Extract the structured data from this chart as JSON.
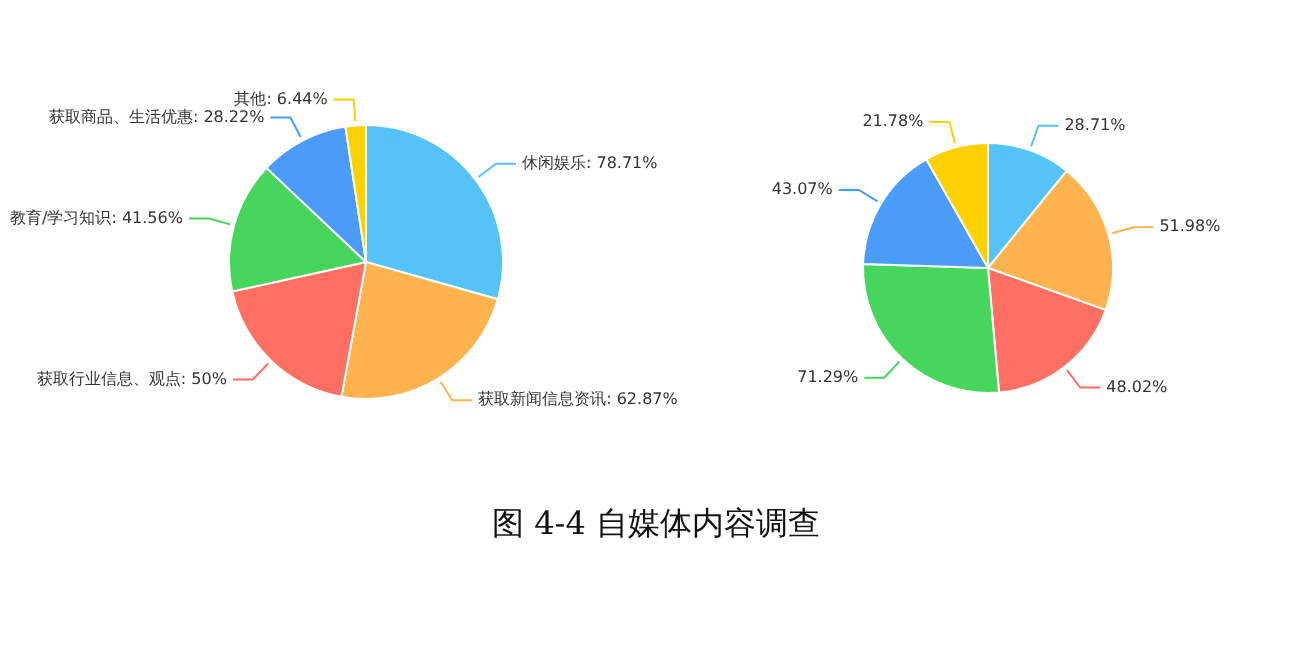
{
  "chart_data": [
    {
      "type": "pie",
      "categories": [
        "休闲娱乐",
        "获取新闻信息资讯",
        "获取行业信息、观点",
        "教育/学习知识",
        "获取商品、生活优惠",
        "其他"
      ],
      "values": [
        78.71,
        62.87,
        50,
        41.56,
        28.22,
        6.44
      ],
      "value_labels": [
        "78.71%",
        "62.87%",
        "50%",
        "41.56%",
        "28.22%",
        "6.44%"
      ],
      "colors": [
        "#55c3f8",
        "#ffb34f",
        "#ff6f62",
        "#46d65e",
        "#4b9bf9",
        "#ffd000"
      ],
      "annotations": [
        "图 4-4 自媒体内容调查"
      ]
    },
    {
      "type": "pie",
      "categories": [
        null,
        null,
        null,
        null,
        null,
        null
      ],
      "values": [
        28.71,
        51.98,
        48.02,
        71.29,
        43.07,
        21.78
      ],
      "value_labels": [
        "28.71%",
        "51.98%",
        "48.02%",
        "71.29%",
        "43.07%",
        "21.78%"
      ],
      "colors": [
        "#55c3f8",
        "#ffb34f",
        "#ff6f62",
        "#46d65e",
        "#4b9bf9",
        "#ffd000"
      ]
    }
  ]
}
